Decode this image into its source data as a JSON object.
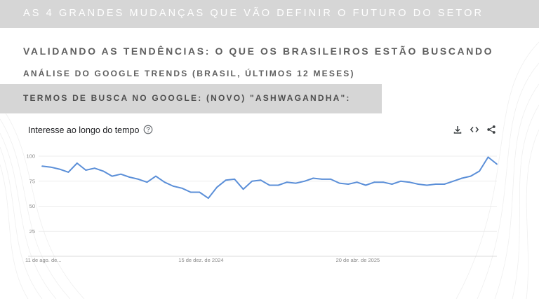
{
  "header": {
    "banner_text": "AS 4 GRANDES MUDANÇAS QUE VÃO DEFINIR O FUTURO DO SETOR"
  },
  "section": {
    "title": "VALIDANDO AS TENDÊNCIAS: O QUE OS BRASILEIROS ESTÃO BUSCANDO",
    "subtitle": "ANÁLISE DO GOOGLE TRENDS (BRASIL, ÚLTIMOS 12 MESES)",
    "term_label": "TERMOS DE BUSCA NO GOOGLE: (NOVO) \"ASHWAGANDHA\":"
  },
  "widget": {
    "title": "Interesse ao longo do tempo",
    "icons": [
      "help-circle-icon",
      "download-icon",
      "embed-code-icon",
      "share-icon"
    ]
  },
  "colors": {
    "line": "#5b8fd8",
    "gridline": "#e6e6e6",
    "banner": "#d6d6d6",
    "text": "#5f5f5f"
  },
  "chart_data": {
    "type": "line",
    "title": "Interesse ao longo do tempo",
    "ylim": [
      0,
      100
    ],
    "yticks": [
      25,
      50,
      75,
      100
    ],
    "x_tick_labels": [
      {
        "label": "11 de ago. de...",
        "index": 0
      },
      {
        "label": "15 de dez. de 2024",
        "index": 18
      },
      {
        "label": "20 de abr. de 2025",
        "index": 36
      }
    ],
    "series": [
      {
        "values": [
          90,
          89,
          87,
          84,
          93,
          86,
          88,
          85,
          80,
          82,
          79,
          77,
          74,
          80,
          74,
          70,
          68,
          64,
          64,
          58,
          69,
          76,
          77,
          67,
          75,
          76,
          71,
          71,
          74,
          73,
          75,
          78,
          77,
          77,
          73,
          72,
          74,
          71,
          74,
          74,
          72,
          75,
          74,
          72,
          71,
          72,
          72,
          75,
          78,
          80,
          85,
          99,
          92
        ]
      }
    ]
  }
}
